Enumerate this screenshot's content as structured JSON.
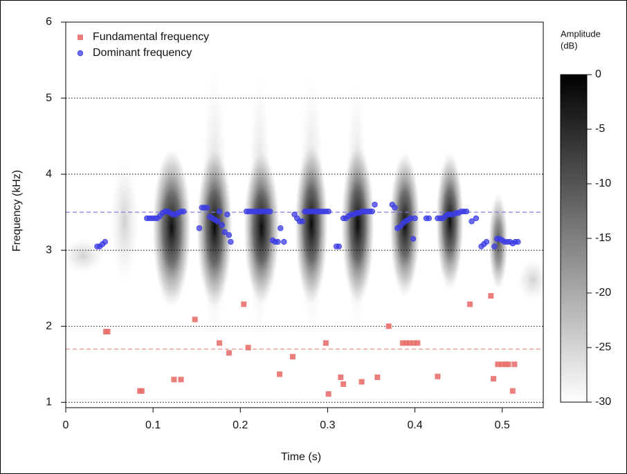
{
  "chart_data": {
    "type": "scatter",
    "xlabel": "Time (s)",
    "ylabel": "Frequency (kHz)",
    "xlim": [
      0,
      0.547
    ],
    "ylim": [
      0.93,
      6
    ],
    "xticks": [
      0,
      0.1,
      0.2,
      0.3,
      0.4,
      0.5
    ],
    "yticks": [
      1,
      2,
      3,
      4,
      5,
      6
    ],
    "grid": true,
    "legend": "top-left",
    "hlines": [
      {
        "value": 3.5,
        "color": "#7f7fdc"
      },
      {
        "value": 1.7,
        "color": "#e58c86"
      }
    ],
    "series": [
      {
        "name": "Fundamental frequency",
        "color": "#e8706b",
        "marker": "square",
        "x": [
          0.046,
          0.048,
          0.085,
          0.087,
          0.124,
          0.132,
          0.148,
          0.176,
          0.187,
          0.204,
          0.209,
          0.245,
          0.26,
          0.298,
          0.301,
          0.315,
          0.318,
          0.339,
          0.357,
          0.37,
          0.386,
          0.39,
          0.394,
          0.399,
          0.403,
          0.426,
          0.463,
          0.487,
          0.49,
          0.495,
          0.5,
          0.504,
          0.507,
          0.514,
          0.512
        ],
        "values": [
          1.93,
          1.93,
          1.15,
          1.15,
          1.3,
          1.3,
          2.09,
          1.78,
          1.65,
          2.29,
          1.72,
          1.37,
          1.6,
          1.78,
          1.11,
          1.33,
          1.24,
          1.27,
          1.33,
          2.0,
          1.78,
          1.78,
          1.78,
          1.78,
          1.78,
          1.34,
          2.29,
          2.4,
          1.31,
          1.5,
          1.5,
          1.5,
          1.5,
          1.5,
          1.15
        ]
      },
      {
        "name": "Dominant frequency",
        "color": "#3b3be6",
        "marker": "circle",
        "x": [
          0.036,
          0.039,
          0.042,
          0.045,
          0.093,
          0.096,
          0.099,
          0.102,
          0.105,
          0.108,
          0.111,
          0.114,
          0.117,
          0.12,
          0.123,
          0.126,
          0.129,
          0.132,
          0.135,
          0.153,
          0.156,
          0.159,
          0.162,
          0.165,
          0.168,
          0.171,
          0.174,
          0.176,
          0.179,
          0.182,
          0.185,
          0.187,
          0.189,
          0.207,
          0.21,
          0.213,
          0.216,
          0.219,
          0.222,
          0.225,
          0.228,
          0.231,
          0.234,
          0.237,
          0.24,
          0.243,
          0.246,
          0.25,
          0.262,
          0.265,
          0.268,
          0.271,
          0.274,
          0.277,
          0.28,
          0.283,
          0.286,
          0.289,
          0.292,
          0.295,
          0.298,
          0.301,
          0.31,
          0.313,
          0.318,
          0.321,
          0.324,
          0.327,
          0.33,
          0.333,
          0.336,
          0.339,
          0.342,
          0.345,
          0.348,
          0.351,
          0.354,
          0.374,
          0.377,
          0.38,
          0.383,
          0.386,
          0.389,
          0.392,
          0.395,
          0.398,
          0.4,
          0.413,
          0.416,
          0.426,
          0.429,
          0.432,
          0.435,
          0.438,
          0.441,
          0.444,
          0.447,
          0.45,
          0.453,
          0.456,
          0.459,
          0.465,
          0.47,
          0.476,
          0.479,
          0.482,
          0.491,
          0.494,
          0.497,
          0.5,
          0.503,
          0.506,
          0.509,
          0.512,
          0.515,
          0.518
        ],
        "values": [
          3.05,
          3.05,
          3.08,
          3.11,
          3.42,
          3.42,
          3.42,
          3.42,
          3.42,
          3.45,
          3.49,
          3.51,
          3.51,
          3.49,
          3.47,
          3.47,
          3.49,
          3.51,
          3.51,
          3.29,
          3.56,
          3.56,
          3.56,
          3.44,
          3.42,
          3.4,
          3.38,
          3.51,
          3.33,
          3.24,
          3.47,
          3.2,
          3.11,
          3.51,
          3.51,
          3.51,
          3.51,
          3.51,
          3.51,
          3.51,
          3.51,
          3.51,
          3.51,
          3.13,
          3.11,
          3.11,
          3.29,
          3.11,
          3.47,
          3.42,
          3.38,
          3.38,
          3.51,
          3.51,
          3.51,
          3.51,
          3.51,
          3.51,
          3.51,
          3.51,
          3.51,
          3.51,
          3.05,
          3.05,
          3.42,
          3.42,
          3.45,
          3.47,
          3.47,
          3.49,
          3.49,
          3.51,
          3.51,
          3.51,
          3.51,
          3.51,
          3.6,
          3.6,
          3.56,
          3.29,
          3.31,
          3.35,
          3.38,
          3.4,
          3.42,
          3.15,
          3.42,
          3.42,
          3.42,
          3.42,
          3.42,
          3.42,
          3.45,
          3.47,
          3.47,
          3.47,
          3.49,
          3.49,
          3.51,
          3.51,
          3.51,
          3.38,
          3.42,
          3.05,
          3.08,
          3.11,
          3.05,
          3.15,
          3.15,
          3.13,
          3.11,
          3.11,
          3.11,
          3.09,
          3.11,
          3.11
        ]
      }
    ],
    "colorbar": {
      "title": [
        "Amplitude",
        "(dB)"
      ],
      "lim": [
        -30,
        0
      ],
      "ticks": [
        0,
        -5,
        -10,
        -15,
        -20,
        -25,
        -30
      ]
    }
  }
}
